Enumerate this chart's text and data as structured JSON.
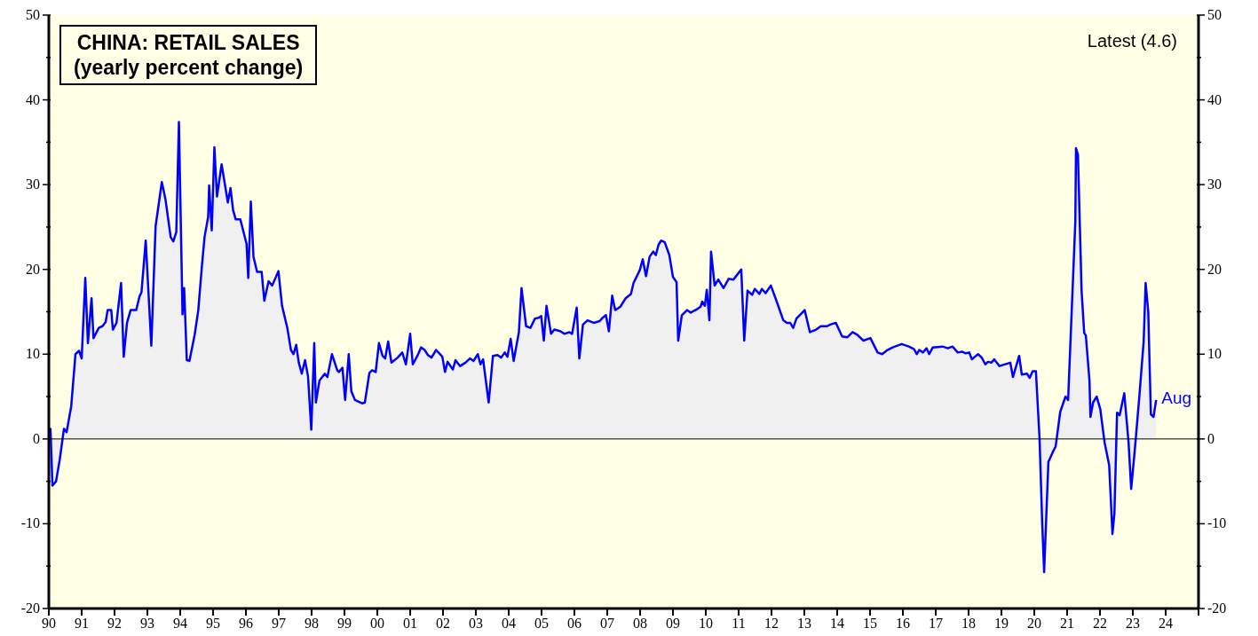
{
  "chart_data": {
    "type": "area",
    "title": "CHINA: RETAIL SALES",
    "subtitle": "(yearly percent change)",
    "annotations": [
      "Latest (4.6)",
      {
        "text": "Aug",
        "x": 2023.71,
        "y": 4.6
      }
    ],
    "series": [
      {
        "color": "#0000ff",
        "x": [
          1990.0,
          1990.05,
          1990.11,
          1990.22,
          1990.33,
          1990.46,
          1990.54,
          1990.68,
          1990.81,
          1990.92,
          1991.0,
          1991.11,
          1991.19,
          1991.3,
          1991.36,
          1991.52,
          1991.63,
          1991.73,
          1991.79,
          1991.9,
          1991.95,
          1992.06,
          1992.2,
          1992.28,
          1992.38,
          1992.49,
          1992.66,
          1992.76,
          1992.82,
          1992.95,
          1993.12,
          1993.25,
          1993.44,
          1993.55,
          1993.71,
          1993.79,
          1993.88,
          1993.96,
          1994.07,
          1994.12,
          1994.2,
          1994.28,
          1994.44,
          1994.55,
          1994.66,
          1994.74,
          1994.85,
          1994.88,
          1994.96,
          1995.04,
          1995.12,
          1995.26,
          1995.37,
          1995.45,
          1995.53,
          1995.61,
          1995.69,
          1995.83,
          1996.02,
          1996.07,
          1996.15,
          1996.23,
          1996.34,
          1996.48,
          1996.56,
          1996.69,
          1996.8,
          1996.99,
          1997.1,
          1997.26,
          1997.37,
          1997.45,
          1997.53,
          1997.61,
          1997.7,
          1997.8,
          1997.89,
          1997.99,
          1998.08,
          1998.13,
          1998.24,
          1998.4,
          1998.48,
          1998.62,
          1998.78,
          1998.83,
          1998.94,
          1999.02,
          1999.13,
          1999.21,
          1999.32,
          1999.43,
          1999.54,
          1999.62,
          1999.76,
          1999.84,
          1999.95,
          2000.05,
          2000.16,
          2000.24,
          2000.33,
          2000.43,
          2000.62,
          2000.76,
          2000.87,
          2001.0,
          2001.08,
          2001.22,
          2001.33,
          2001.44,
          2001.54,
          2001.65,
          2001.79,
          2001.98,
          2002.06,
          2002.14,
          2002.3,
          2002.38,
          2002.52,
          2002.68,
          2002.82,
          2002.93,
          2003.06,
          2003.14,
          2003.22,
          2003.39,
          2003.52,
          2003.66,
          2003.77,
          2003.88,
          2003.96,
          2004.06,
          2004.15,
          2004.31,
          2004.39,
          2004.53,
          2004.66,
          2004.8,
          2004.91,
          2004.99,
          2005.07,
          2005.15,
          2005.29,
          2005.39,
          2005.58,
          2005.69,
          2005.85,
          2005.93,
          2006.07,
          2006.15,
          2006.26,
          2006.4,
          2006.59,
          2006.77,
          2006.86,
          2006.96,
          2007.05,
          2007.15,
          2007.24,
          2007.4,
          2007.56,
          2007.72,
          2007.8,
          2007.99,
          2008.08,
          2008.18,
          2008.29,
          2008.4,
          2008.48,
          2008.56,
          2008.64,
          2008.75,
          2008.89,
          2009.0,
          2009.11,
          2009.16,
          2009.27,
          2009.43,
          2009.54,
          2009.73,
          2009.84,
          2009.89,
          2009.97,
          2010.03,
          2010.11,
          2010.16,
          2010.27,
          2010.38,
          2010.54,
          2010.7,
          2010.84,
          2010.92,
          2011.08,
          2011.17,
          2011.27,
          2011.41,
          2011.49,
          2011.63,
          2011.71,
          2011.82,
          2011.98,
          2012.17,
          2012.36,
          2012.47,
          2012.57,
          2012.66,
          2012.76,
          2013.01,
          2013.17,
          2013.36,
          2013.5,
          2013.69,
          2013.79,
          2013.96,
          2014.15,
          2014.31,
          2014.47,
          2014.61,
          2014.8,
          2015.01,
          2015.23,
          2015.37,
          2015.53,
          2015.69,
          2015.96,
          2016.18,
          2016.34,
          2016.42,
          2016.5,
          2016.61,
          2016.72,
          2016.8,
          2016.91,
          2017.21,
          2017.37,
          2017.51,
          2017.67,
          2017.8,
          2017.91,
          2018.02,
          2018.1,
          2018.29,
          2018.4,
          2018.51,
          2018.59,
          2018.7,
          2018.78,
          2018.94,
          2019.27,
          2019.35,
          2019.54,
          2019.62,
          2019.78,
          2019.86,
          2019.95,
          2020.05,
          2020.16,
          2020.24,
          2020.3,
          2020.43,
          2020.57,
          2020.65,
          2020.79,
          2020.95,
          2021.03,
          2021.25,
          2021.27,
          2021.33,
          2021.44,
          2021.52,
          2021.57,
          2021.68,
          2021.71,
          2021.79,
          2021.9,
          2022.01,
          2022.14,
          2022.28,
          2022.38,
          2022.44,
          2022.52,
          2022.6,
          2022.74,
          2022.87,
          2022.95,
          2023.06,
          2023.2,
          2023.33,
          2023.39,
          2023.47,
          2023.55,
          2023.63,
          2023.71
        ],
        "values": [
          0,
          1.2,
          -5.5,
          -5,
          -2.5,
          1.2,
          0.8,
          3.8,
          10,
          10.4,
          9.5,
          19,
          11.3,
          16.6,
          11.9,
          13.1,
          13.3,
          13.8,
          15.2,
          15.2,
          12.9,
          13.7,
          18.4,
          9.7,
          13.7,
          15.2,
          15.2,
          16.8,
          17.3,
          23.4,
          11,
          25.1,
          30.3,
          28.3,
          23.8,
          23.3,
          24.4,
          37.4,
          14.7,
          17.8,
          9.3,
          9.2,
          12.3,
          15.2,
          20.4,
          23.8,
          26.2,
          29.9,
          24.6,
          34.4,
          28.6,
          32.4,
          29.8,
          27.9,
          29.6,
          27,
          25.9,
          25.9,
          23,
          19,
          28,
          21.5,
          19.7,
          19.7,
          16.3,
          18.6,
          18.1,
          19.8,
          15.7,
          13.1,
          10.5,
          10,
          11.1,
          9,
          7.7,
          9.3,
          7.4,
          1.1,
          11.3,
          4.3,
          6.9,
          7.7,
          7.3,
          10,
          8.1,
          7.9,
          8.4,
          4.6,
          10,
          5.6,
          4.6,
          4.4,
          4.2,
          4.3,
          7.8,
          8.1,
          7.9,
          11.3,
          9.8,
          9.5,
          11.5,
          9,
          9.6,
          10.2,
          8.8,
          12.4,
          8.8,
          9.8,
          10.8,
          10.5,
          9.9,
          9.6,
          10.5,
          9.7,
          7.9,
          9.1,
          8.2,
          9.3,
          8.6,
          9,
          9.5,
          9.2,
          10,
          8.8,
          9.4,
          4.3,
          9.8,
          9.9,
          9.6,
          10.2,
          9.7,
          11.8,
          9.2,
          12.6,
          17.8,
          13.3,
          13.1,
          14.2,
          14.3,
          14.5,
          11.6,
          15.7,
          12.4,
          12.9,
          12.7,
          12.4,
          12.6,
          12.4,
          15.5,
          9.5,
          13.5,
          14,
          13.7,
          13.9,
          14.3,
          14.6,
          12.7,
          16.9,
          15.2,
          15.6,
          16.6,
          17.1,
          18.4,
          19.9,
          21.2,
          19.2,
          21.5,
          22.1,
          21.7,
          22.9,
          23.4,
          23.2,
          21.7,
          19.1,
          18.5,
          11.6,
          14.6,
          15.2,
          14.9,
          15.3,
          15.6,
          16.2,
          15.7,
          17.6,
          14,
          22.1,
          18.1,
          18.8,
          17.8,
          18.9,
          18.8,
          19.2,
          20,
          11.6,
          17.5,
          17,
          17.7,
          17.1,
          17.7,
          17.2,
          18.1,
          16.1,
          14,
          13.7,
          13.7,
          13.1,
          14.2,
          15.2,
          12.6,
          12.9,
          13.3,
          13.3,
          13.5,
          13.7,
          12.1,
          12,
          12.6,
          12.3,
          11.6,
          11.9,
          10.2,
          10,
          10.5,
          10.8,
          11.2,
          10.9,
          10.6,
          10,
          10.5,
          10.2,
          10.7,
          10,
          10.8,
          10.9,
          10.7,
          10.9,
          10.2,
          10.3,
          10.1,
          10.2,
          9.4,
          10,
          9.6,
          8.8,
          9.1,
          9,
          9.4,
          8.6,
          9,
          7.3,
          9.8,
          7.6,
          7.7,
          7.2,
          8,
          8,
          0.1,
          -9.8,
          -15.7,
          -2.7,
          -1.5,
          -0.9,
          3.2,
          5,
          4.6,
          25.7,
          34.3,
          33.5,
          17.5,
          12.5,
          12.2,
          6.9,
          2.6,
          4.3,
          5,
          3.5,
          -0.4,
          -3.1,
          -11.2,
          -8.8,
          3.1,
          2.8,
          5.4,
          -0.4,
          -5.9,
          -1.3,
          5.1,
          11.5,
          18.4,
          15,
          2.9,
          2.6,
          4.6
        ]
      }
    ],
    "xlim": [
      1990,
      2025
    ],
    "xticks": [
      {
        "value": 1990,
        "label": "90"
      },
      {
        "value": 1991,
        "label": "91"
      },
      {
        "value": 1992,
        "label": "92"
      },
      {
        "value": 1993,
        "label": "93"
      },
      {
        "value": 1994,
        "label": "94"
      },
      {
        "value": 1995,
        "label": "95"
      },
      {
        "value": 1996,
        "label": "96"
      },
      {
        "value": 1997,
        "label": "97"
      },
      {
        "value": 1998,
        "label": "98"
      },
      {
        "value": 1999,
        "label": "99"
      },
      {
        "value": 2000,
        "label": "00"
      },
      {
        "value": 2001,
        "label": "01"
      },
      {
        "value": 2002,
        "label": "02"
      },
      {
        "value": 2003,
        "label": "03"
      },
      {
        "value": 2004,
        "label": "04"
      },
      {
        "value": 2005,
        "label": "05"
      },
      {
        "value": 2006,
        "label": "06"
      },
      {
        "value": 2007,
        "label": "07"
      },
      {
        "value": 2008,
        "label": "08"
      },
      {
        "value": 2009,
        "label": "09"
      },
      {
        "value": 2010,
        "label": "10"
      },
      {
        "value": 2011,
        "label": "11"
      },
      {
        "value": 2012,
        "label": "12"
      },
      {
        "value": 2013,
        "label": "13"
      },
      {
        "value": 2014,
        "label": "14"
      },
      {
        "value": 2015,
        "label": "15"
      },
      {
        "value": 2016,
        "label": "16"
      },
      {
        "value": 2017,
        "label": "17"
      },
      {
        "value": 2018,
        "label": "18"
      },
      {
        "value": 2019,
        "label": "19"
      },
      {
        "value": 2020,
        "label": "20"
      },
      {
        "value": 2021,
        "label": "21"
      },
      {
        "value": 2022,
        "label": "22"
      },
      {
        "value": 2023,
        "label": "23"
      },
      {
        "value": 2024,
        "label": "24"
      },
      {
        "value": 2025,
        "label": null
      }
    ],
    "ylim": [
      -20,
      50
    ],
    "yticks": [
      -20,
      {
        "value": -15,
        "label": null
      },
      -10,
      {
        "value": -5,
        "label": null
      },
      0,
      {
        "value": 5,
        "label": null
      },
      10,
      {
        "value": 15,
        "label": null
      },
      20,
      {
        "value": 25,
        "label": null
      },
      30,
      {
        "value": 35,
        "label": null
      },
      40,
      {
        "value": 45,
        "label": null
      },
      50
    ],
    "y2lim": [
      -20,
      50
    ],
    "y2ticks": [
      -20,
      {
        "value": -15,
        "label": null
      },
      -10,
      {
        "value": -5,
        "label": null
      },
      0,
      {
        "value": 5,
        "label": null
      },
      10,
      {
        "value": 15,
        "label": null
      },
      20,
      {
        "value": 25,
        "label": null
      },
      30,
      {
        "value": 35,
        "label": null
      },
      40,
      {
        "value": 45,
        "label": null
      },
      50
    ],
    "ref_lines": [
      {
        "axis": "y",
        "value": 0,
        "color": "#000000"
      }
    ],
    "grid": false,
    "line_style": "solid"
  }
}
